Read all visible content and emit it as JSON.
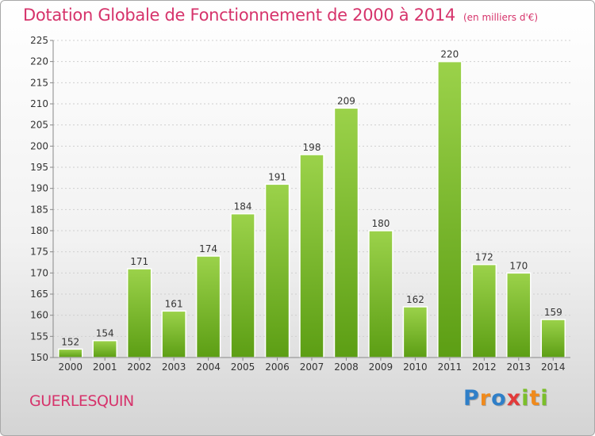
{
  "chart_data": {
    "type": "bar",
    "title": "Dotation Globale de Fonctionnement de 2000 à 2014",
    "subtitle": "(en milliers d'€)",
    "categories": [
      "2000",
      "2001",
      "2002",
      "2003",
      "2004",
      "2005",
      "2006",
      "2007",
      "2008",
      "2009",
      "2010",
      "2011",
      "2012",
      "2013",
      "2014"
    ],
    "values": [
      152,
      154,
      171,
      161,
      174,
      184,
      191,
      198,
      209,
      180,
      162,
      220,
      172,
      170,
      159
    ],
    "ylim": [
      150,
      225
    ],
    "yticks": [
      150,
      155,
      160,
      165,
      170,
      175,
      180,
      185,
      190,
      195,
      200,
      205,
      210,
      215,
      220,
      225
    ],
    "grid": true,
    "bar_color": "#7fbf2e"
  },
  "footer": {
    "commune": "GUERLESQUIN",
    "logo_letters": [
      {
        "char": "P",
        "color": "#2f7fc8"
      },
      {
        "char": "r",
        "color": "#f08a1c"
      },
      {
        "char": "o",
        "color": "#2f7fc8"
      },
      {
        "char": "x",
        "color": "#e23a3a"
      },
      {
        "char": "i",
        "color": "#7bbf2a"
      },
      {
        "char": "t",
        "color": "#f08a1c"
      },
      {
        "char": "i",
        "color": "#7bbf2a"
      }
    ]
  }
}
